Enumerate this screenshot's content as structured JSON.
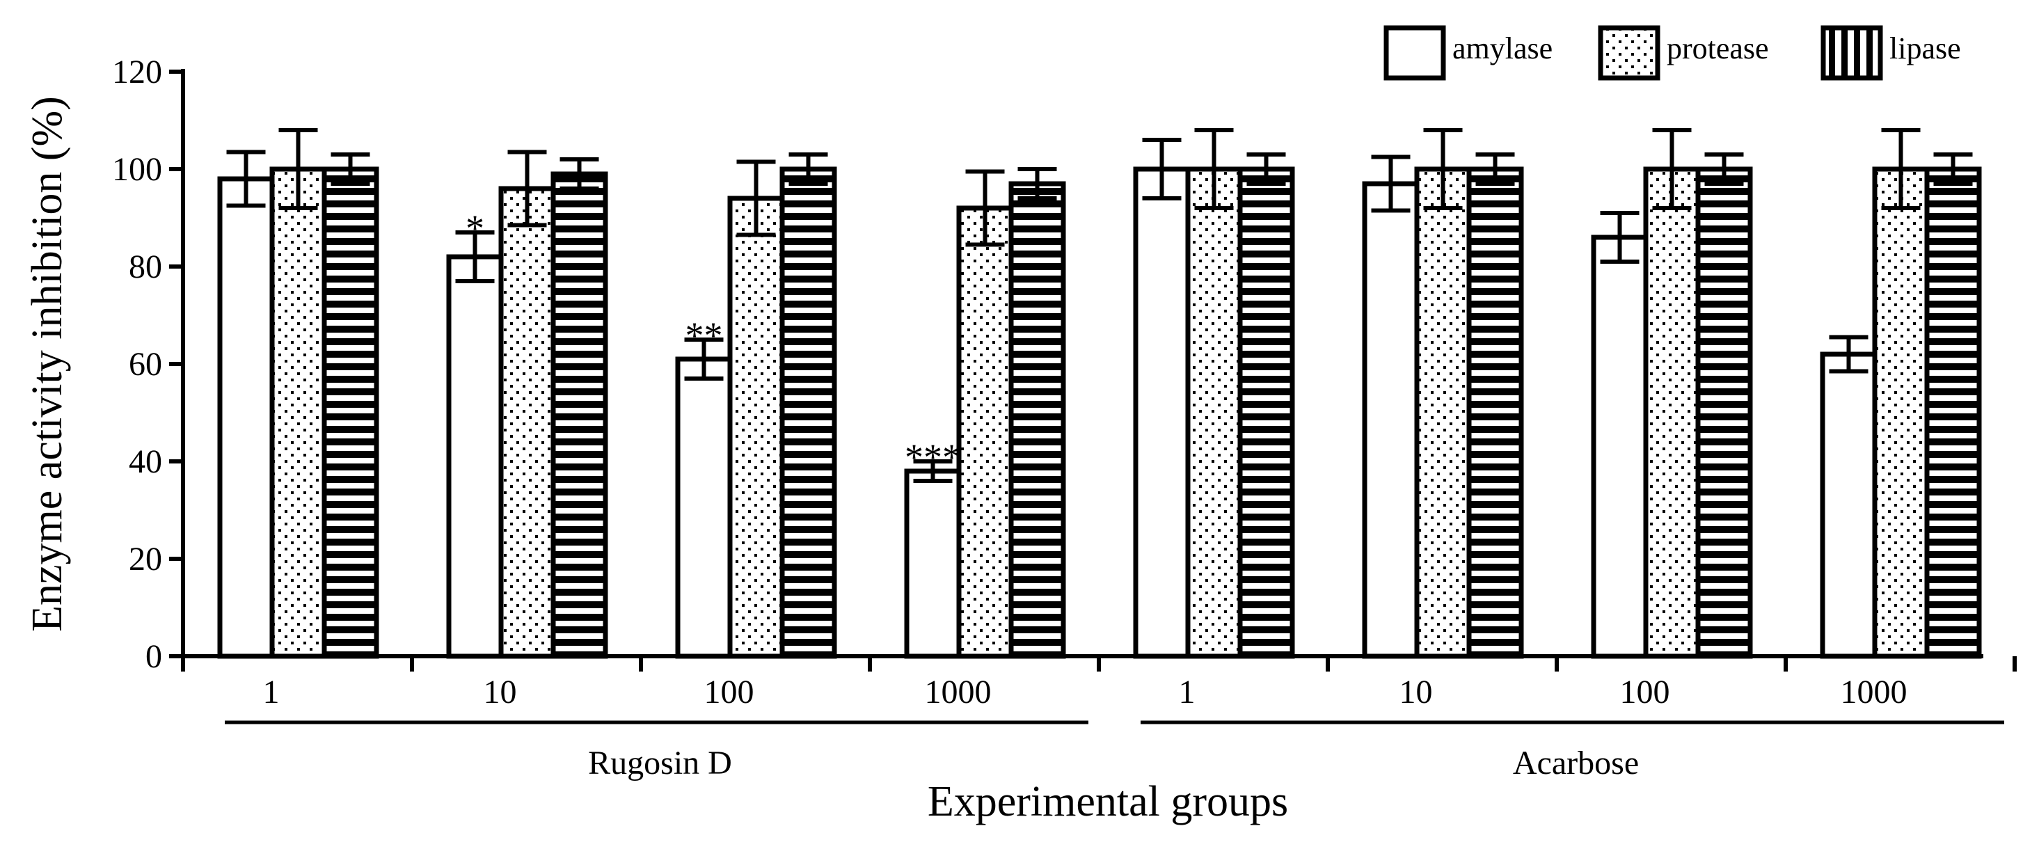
{
  "chart_data": {
    "type": "bar",
    "title": "",
    "xlabel": "Experimental groups",
    "ylabel": "Enzyme activity inhibition (%)",
    "ylim": [
      0,
      120
    ],
    "yticks": [
      0,
      20,
      40,
      60,
      80,
      100,
      120
    ],
    "grid": false,
    "legend_position": "top-right",
    "categories": [
      "1",
      "10",
      "100",
      "1000",
      "1",
      "10",
      "100",
      "1000"
    ],
    "groups": [
      {
        "label": "Rugosin D",
        "category_indices": [
          0,
          1,
          2,
          3
        ]
      },
      {
        "label": "Acarbose",
        "category_indices": [
          4,
          5,
          6,
          7
        ]
      }
    ],
    "series": [
      {
        "name": "amylase",
        "pattern": "plain",
        "values": [
          98,
          82,
          61,
          38,
          100,
          97,
          86,
          62
        ],
        "errors": [
          5.5,
          5,
          4,
          2,
          6,
          5.5,
          5,
          3.5
        ]
      },
      {
        "name": "protease",
        "pattern": "dots",
        "values": [
          100,
          96,
          94,
          92,
          100,
          100,
          100,
          100
        ],
        "errors": [
          8,
          7.5,
          7.5,
          7.5,
          8,
          8,
          8,
          8
        ]
      },
      {
        "name": "lipase",
        "pattern": "stripes",
        "values": [
          100,
          99,
          100,
          97,
          100,
          100,
          100,
          100
        ],
        "errors": [
          3,
          3,
          3,
          3,
          3,
          3,
          3,
          3
        ]
      }
    ],
    "annotations": [
      {
        "text": "*",
        "category_index": 1,
        "series_index": 0
      },
      {
        "text": "**",
        "category_index": 2,
        "series_index": 0
      },
      {
        "text": "***",
        "category_index": 3,
        "series_index": 0
      }
    ]
  }
}
